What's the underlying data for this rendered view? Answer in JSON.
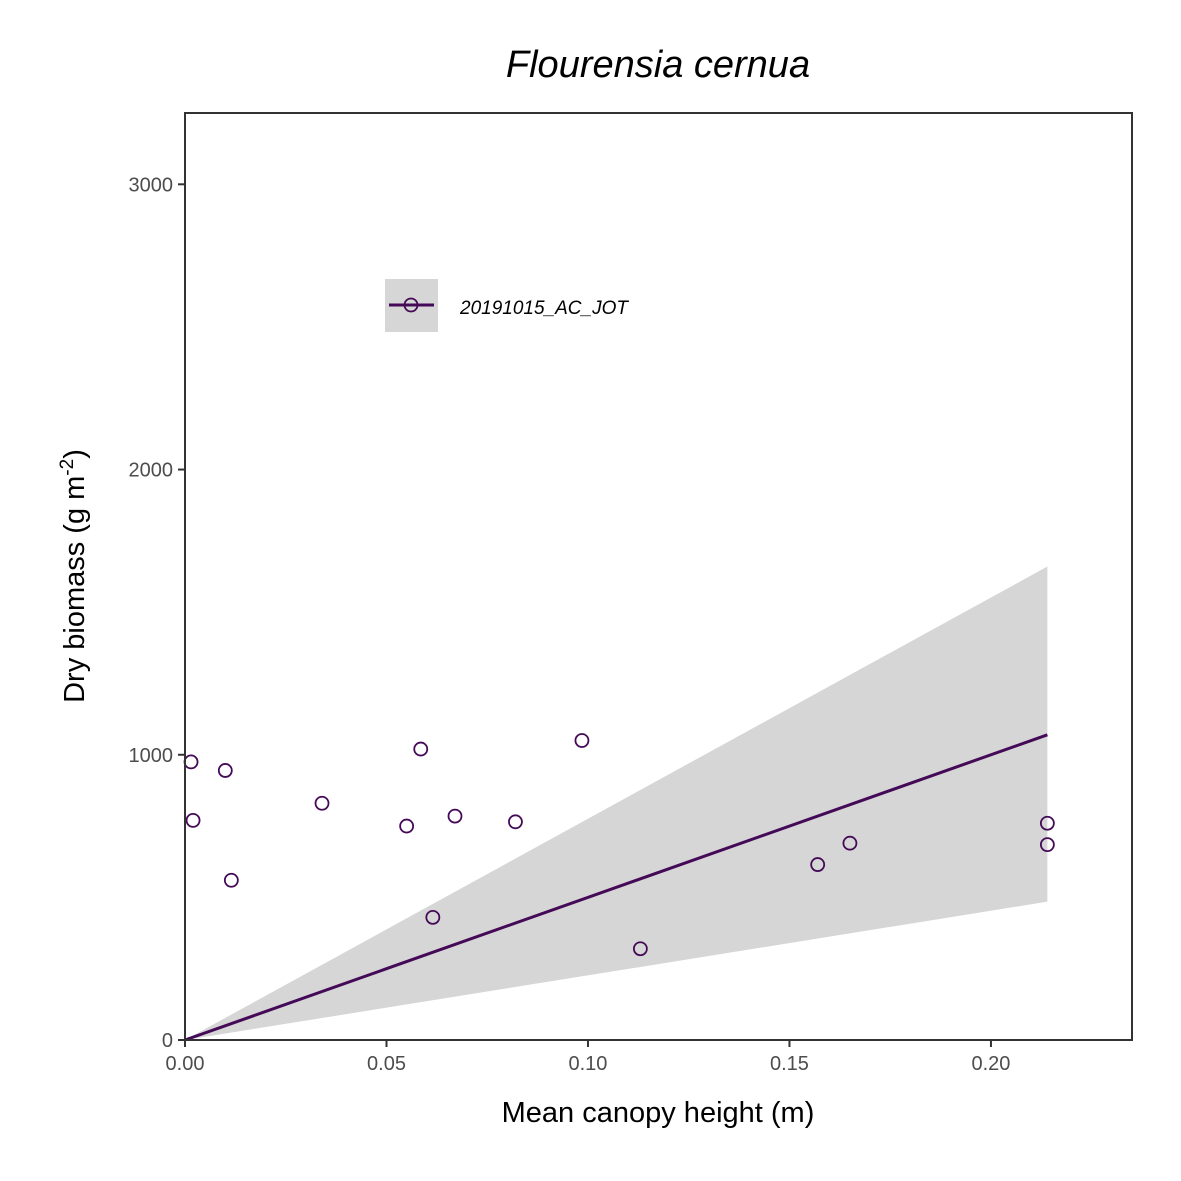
{
  "chart_data": {
    "type": "scatter",
    "title": "Flourensia cernua",
    "xlabel": "Mean canopy height (m)",
    "ylabel_main": "Dry biomass (g m",
    "ylabel_sup": "-2",
    "ylabel_close": ")",
    "xlim": [
      0,
      0.235
    ],
    "ylim": [
      0,
      3250
    ],
    "x_ticks": [
      0.0,
      0.05,
      0.1,
      0.15,
      0.2
    ],
    "x_tick_labels": [
      "0.00",
      "0.05",
      "0.10",
      "0.15",
      "0.20"
    ],
    "y_ticks": [
      0,
      1000,
      2000,
      3000
    ],
    "y_tick_labels": [
      "0",
      "1000",
      "2000",
      "3000"
    ],
    "grid": false,
    "legend_position": "top-left inside",
    "series": [
      {
        "name": "20191015_AC_JOT",
        "color": "#440a57",
        "points": [
          {
            "x": 0.0015,
            "y": 975
          },
          {
            "x": 0.002,
            "y": 770
          },
          {
            "x": 0.01,
            "y": 945
          },
          {
            "x": 0.0115,
            "y": 560
          },
          {
            "x": 0.034,
            "y": 830
          },
          {
            "x": 0.055,
            "y": 750
          },
          {
            "x": 0.0585,
            "y": 1020
          },
          {
            "x": 0.0615,
            "y": 430
          },
          {
            "x": 0.067,
            "y": 785
          },
          {
            "x": 0.082,
            "y": 765
          },
          {
            "x": 0.0985,
            "y": 1050
          },
          {
            "x": 0.113,
            "y": 320
          },
          {
            "x": 0.157,
            "y": 615
          },
          {
            "x": 0.165,
            "y": 690
          },
          {
            "x": 0.214,
            "y": 760
          },
          {
            "x": 0.214,
            "y": 685
          }
        ],
        "fit": {
          "x": [
            0,
            0.214
          ],
          "y": [
            0,
            1070
          ]
        },
        "ci_upper": {
          "x": [
            0,
            0.214
          ],
          "y": [
            0,
            1660
          ]
        },
        "ci_lower": {
          "x": [
            0,
            0.214
          ],
          "y": [
            0,
            485
          ]
        }
      }
    ]
  },
  "colors": {
    "line": "#440a57",
    "ribbon": "#d6d6d6",
    "axis": "#333333"
  }
}
